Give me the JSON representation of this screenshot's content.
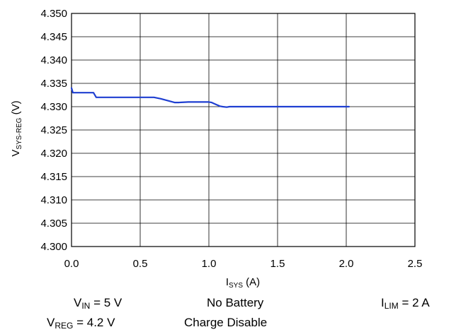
{
  "chart_data": {
    "type": "line",
    "xlabel": {
      "main": "I",
      "sub": "SYS",
      "unit": " (A)"
    },
    "ylabel": {
      "main": "V",
      "sub": "SYS-REG",
      "unit": " (V)"
    },
    "xlim": [
      0,
      2.5
    ],
    "ylim": [
      4.3,
      4.35
    ],
    "x_ticks": [
      "0.0",
      "0.5",
      "1.0",
      "1.5",
      "2.0",
      "2.5"
    ],
    "y_ticks": [
      "4.300",
      "4.305",
      "4.310",
      "4.315",
      "4.320",
      "4.325",
      "4.330",
      "4.335",
      "4.340",
      "4.345",
      "4.350"
    ],
    "grid": true,
    "series": [
      {
        "color": "#1f3fd1",
        "x": [
          0.0,
          0.005,
          0.01,
          0.05,
          0.1,
          0.16,
          0.18,
          0.2,
          0.3,
          0.4,
          0.5,
          0.55,
          0.6,
          0.65,
          0.7,
          0.75,
          0.78,
          0.85,
          0.9,
          0.95,
          1.0,
          1.02,
          1.05,
          1.08,
          1.1,
          1.13,
          1.15,
          1.2,
          1.3,
          1.5,
          1.7,
          1.9,
          2.02
        ],
        "y": [
          4.334,
          4.3335,
          4.333,
          4.333,
          4.333,
          4.333,
          4.332,
          4.332,
          4.332,
          4.332,
          4.332,
          4.332,
          4.332,
          4.3317,
          4.3313,
          4.3309,
          4.3309,
          4.331,
          4.331,
          4.331,
          4.331,
          4.3309,
          4.3305,
          4.3301,
          4.33,
          4.3299,
          4.33,
          4.33,
          4.33,
          4.33,
          4.33,
          4.33,
          4.33
        ]
      }
    ]
  },
  "conditions": {
    "vin": {
      "main": "V",
      "sub": "IN",
      "rest": " = 5 V"
    },
    "vreg": {
      "main": "V",
      "sub": "REG",
      "rest": " = 4.2 V"
    },
    "battery": "No Battery",
    "charge": "Charge Disable",
    "ilim": {
      "main": "I",
      "sub": "LIM",
      "rest": " = 2 A"
    }
  }
}
